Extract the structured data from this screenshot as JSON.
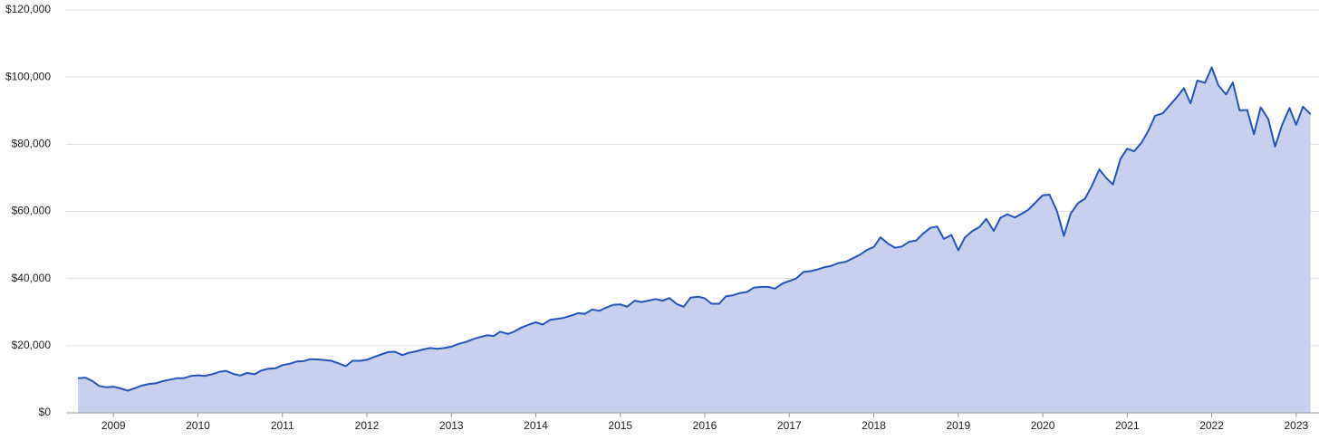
{
  "chart_data": {
    "type": "area",
    "x": [
      2008.58,
      2008.67,
      2008.75,
      2008.83,
      2008.92,
      2009,
      2009.08,
      2009.17,
      2009.25,
      2009.33,
      2009.42,
      2009.5,
      2009.58,
      2009.67,
      2009.75,
      2009.83,
      2009.92,
      2010,
      2010.08,
      2010.17,
      2010.25,
      2010.33,
      2010.42,
      2010.5,
      2010.58,
      2010.67,
      2010.75,
      2010.83,
      2010.92,
      2011,
      2011.08,
      2011.17,
      2011.25,
      2011.33,
      2011.42,
      2011.5,
      2011.58,
      2011.67,
      2011.75,
      2011.83,
      2011.92,
      2012,
      2012.08,
      2012.17,
      2012.25,
      2012.33,
      2012.42,
      2012.5,
      2012.58,
      2012.67,
      2012.75,
      2012.83,
      2012.92,
      2013,
      2013.08,
      2013.17,
      2013.25,
      2013.33,
      2013.42,
      2013.5,
      2013.58,
      2013.67,
      2013.75,
      2013.83,
      2013.92,
      2014,
      2014.08,
      2014.17,
      2014.25,
      2014.33,
      2014.42,
      2014.5,
      2014.58,
      2014.67,
      2014.75,
      2014.83,
      2014.92,
      2015,
      2015.08,
      2015.17,
      2015.25,
      2015.33,
      2015.42,
      2015.5,
      2015.58,
      2015.67,
      2015.75,
      2015.83,
      2015.92,
      2016,
      2016.08,
      2016.17,
      2016.25,
      2016.33,
      2016.42,
      2016.5,
      2016.58,
      2016.67,
      2016.75,
      2016.83,
      2016.92,
      2017,
      2017.08,
      2017.17,
      2017.25,
      2017.33,
      2017.42,
      2017.5,
      2017.58,
      2017.67,
      2017.75,
      2017.83,
      2017.92,
      2018,
      2018.08,
      2018.17,
      2018.25,
      2018.33,
      2018.42,
      2018.5,
      2018.58,
      2018.67,
      2018.75,
      2018.83,
      2018.92,
      2019,
      2019.08,
      2019.17,
      2019.25,
      2019.33,
      2019.42,
      2019.5,
      2019.58,
      2019.67,
      2019.75,
      2019.83,
      2019.92,
      2020,
      2020.08,
      2020.17,
      2020.25,
      2020.33,
      2020.42,
      2020.5,
      2020.58,
      2020.67,
      2020.75,
      2020.83,
      2020.92,
      2021,
      2021.08,
      2021.17,
      2021.25,
      2021.33,
      2021.42,
      2021.5,
      2021.58,
      2021.67,
      2021.75,
      2021.83,
      2021.92,
      2022,
      2022.08,
      2022.17,
      2022.25,
      2022.33,
      2022.42,
      2022.5,
      2022.58,
      2022.67,
      2022.75,
      2022.83,
      2022.92,
      2023,
      2023.08,
      2023.17
    ],
    "values": [
      10300,
      10500,
      9500,
      8000,
      7600,
      7800,
      7300,
      6600,
      7300,
      8100,
      8600,
      8800,
      9400,
      9900,
      10300,
      10300,
      11000,
      11200,
      11000,
      11500,
      12200,
      12500,
      11600,
      11100,
      11900,
      11500,
      12600,
      13100,
      13300,
      14200,
      14600,
      15300,
      15400,
      16000,
      15900,
      15700,
      15500,
      14700,
      13900,
      15500,
      15500,
      15800,
      16600,
      17400,
      18100,
      18200,
      17200,
      17900,
      18300,
      18900,
      19300,
      19100,
      19300,
      19700,
      20500,
      21100,
      21900,
      22500,
      23100,
      22900,
      24200,
      23500,
      24300,
      25400,
      26300,
      27000,
      26300,
      27700,
      28000,
      28300,
      29000,
      29700,
      29500,
      30800,
      30400,
      31300,
      32200,
      32300,
      31600,
      33400,
      33000,
      33400,
      33900,
      33400,
      34200,
      32400,
      31600,
      34300,
      34600,
      34100,
      32500,
      32500,
      34700,
      35000,
      35700,
      36000,
      37300,
      37500,
      37500,
      37000,
      38500,
      39300,
      40000,
      42000,
      42200,
      42700,
      43400,
      43800,
      44600,
      45000,
      46000,
      47000,
      48500,
      49400,
      52300,
      50400,
      49200,
      49500,
      51000,
      51300,
      53300,
      55100,
      55500,
      51800,
      53000,
      48400,
      52300,
      54200,
      55300,
      57800,
      54200,
      58100,
      59100,
      58200,
      59300,
      60500,
      62800,
      64800,
      65000,
      60000,
      52700,
      59300,
      62500,
      63800,
      67500,
      72500,
      70000,
      68000,
      75600,
      78700,
      77900,
      80500,
      84000,
      88500,
      89200,
      91500,
      93800,
      96700,
      92200,
      99000,
      98300,
      102900,
      97500,
      94800,
      98400,
      90100,
      90200,
      83000,
      91000,
      87500,
      79300,
      85600,
      90800,
      85800,
      91200,
      89000
    ],
    "color": "#2255bb",
    "fill": "#c8d0f0",
    "grid": true,
    "xlim": [
      2008.44,
      2023.27
    ],
    "xticks": [
      2009,
      2010,
      2011,
      2012,
      2013,
      2014,
      2015,
      2016,
      2017,
      2018,
      2019,
      2020,
      2021,
      2022,
      2023
    ],
    "ylim": [
      0,
      120000
    ],
    "yticks": [
      {
        "value": 0,
        "label": "$0"
      },
      {
        "value": 20000,
        "label": "$20,000"
      },
      {
        "value": 40000,
        "label": "$40,000"
      },
      {
        "value": 60000,
        "label": "$60,000"
      },
      {
        "value": 80000,
        "label": "$80,000"
      },
      {
        "value": 100000,
        "label": "$100,000"
      },
      {
        "value": 120000,
        "label": "$120,000"
      }
    ]
  }
}
